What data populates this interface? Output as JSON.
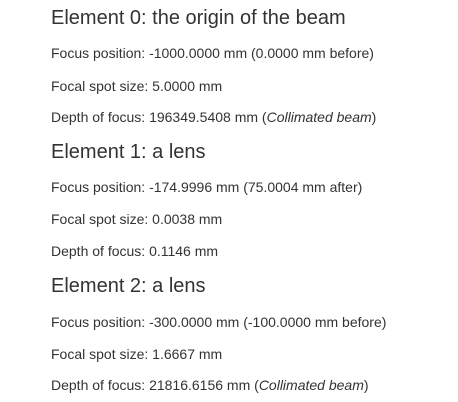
{
  "elements": [
    {
      "heading": "Element 0: the origin of the beam",
      "focus_position_label": "Focus position:",
      "focus_position_value": "-1000.0000 mm (0.0000 mm before)",
      "focal_spot_label": "Focal spot size:",
      "focal_spot_value": "5.0000 mm",
      "depth_label": "Depth of focus:",
      "depth_value": "196349.5408 mm",
      "depth_note": "Collimated beam"
    },
    {
      "heading": "Element 1: a lens",
      "focus_position_label": "Focus position:",
      "focus_position_value": "-174.9996 mm (75.0004 mm after)",
      "focal_spot_label": "Focal spot size:",
      "focal_spot_value": "0.0038 mm",
      "depth_label": "Depth of focus:",
      "depth_value": "0.1146 mm"
    },
    {
      "heading": "Element 2: a lens",
      "focus_position_label": "Focus position:",
      "focus_position_value": "-300.0000 mm (-100.0000 mm before)",
      "focal_spot_label": "Focal spot size:",
      "focal_spot_value": "1.6667 mm",
      "depth_label": "Depth of focus:",
      "depth_value": "21816.6156 mm",
      "depth_note": "Collimated beam"
    }
  ]
}
